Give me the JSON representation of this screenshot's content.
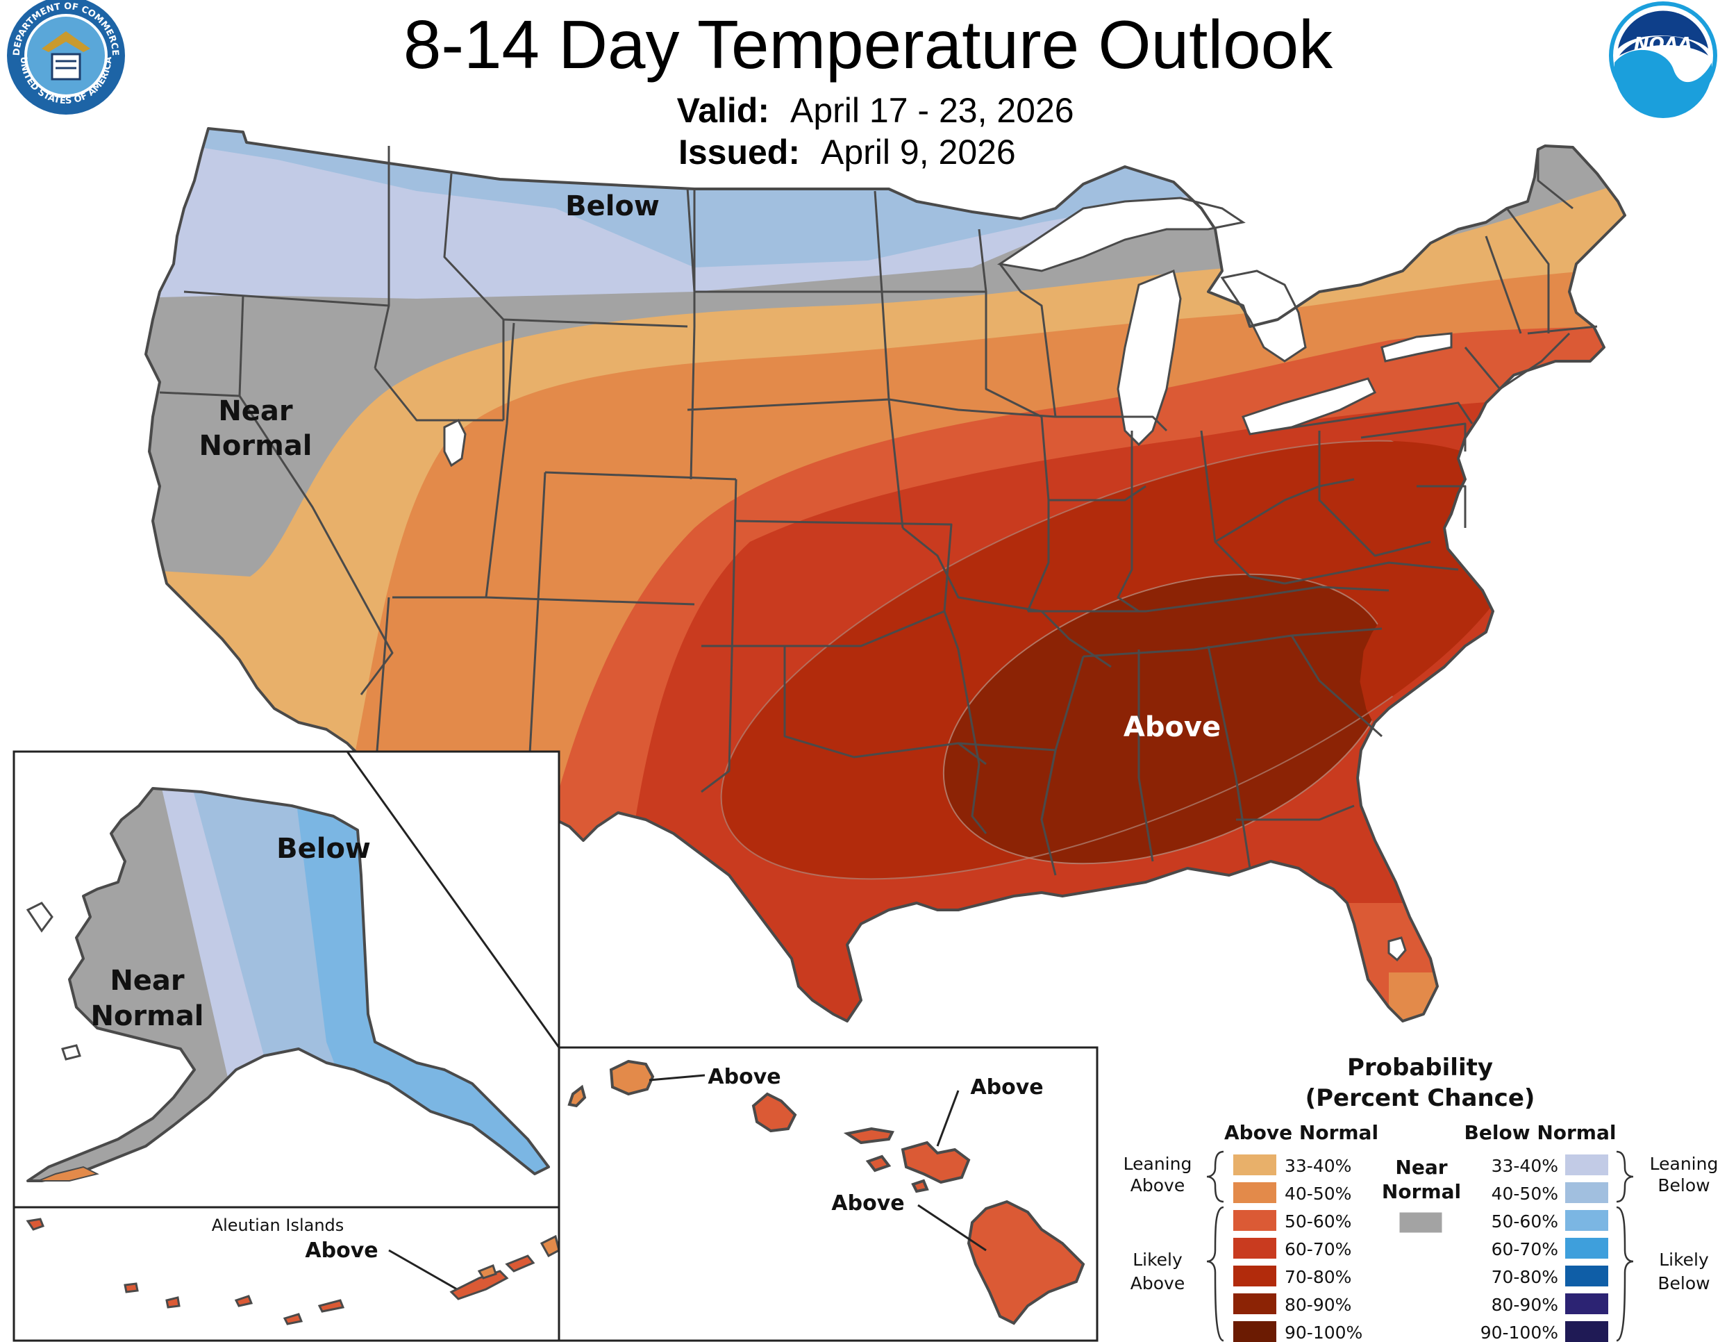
{
  "title": "8-14 Day Temperature Outlook",
  "valid": {
    "label": "Valid:",
    "value": "April 17 - 23, 2026"
  },
  "issued": {
    "label": "Issued:",
    "value": "April 9, 2026"
  },
  "logos": {
    "left_seal_text_top": "DEPARTMENT OF COMMERCE",
    "left_seal_text_bottom": "UNITED STATES OF AMERICA",
    "right_logo_text": "NOAA"
  },
  "conus_labels": {
    "below": "Below",
    "near_normal_1": "Near",
    "near_normal_2": "Normal",
    "above": "Above"
  },
  "alaska_labels": {
    "below": "Below",
    "near_normal_1": "Near",
    "near_normal_2": "Normal"
  },
  "aleutian": {
    "title": "Aleutian Islands",
    "above": "Above"
  },
  "hawaii_labels": {
    "kauai": "Above",
    "oahu_maui": "Above",
    "big_island": "Above"
  },
  "legend": {
    "title_1": "Probability",
    "title_2": "(Percent Chance)",
    "above_header": "Above Normal",
    "below_header": "Below Normal",
    "near_1": "Near",
    "near_2": "Normal",
    "leaning_above_1": "Leaning",
    "leaning_above_2": "Above",
    "likely_above_1": "Likely",
    "likely_above_2": "Above",
    "leaning_below_1": "Leaning",
    "leaning_below_2": "Below",
    "likely_below_1": "Likely",
    "likely_below_2": "Below",
    "above_rows": [
      {
        "range": "33-40%",
        "color": "#e8b06a"
      },
      {
        "range": "40-50%",
        "color": "#e38a4a"
      },
      {
        "range": "50-60%",
        "color": "#db5a35"
      },
      {
        "range": "60-70%",
        "color": "#c93b1f"
      },
      {
        "range": "70-80%",
        "color": "#b22b0c"
      },
      {
        "range": "80-90%",
        "color": "#8c2305"
      },
      {
        "range": "90-100%",
        "color": "#6b1b02"
      }
    ],
    "below_rows": [
      {
        "range": "33-40%",
        "color": "#c2cbe6"
      },
      {
        "range": "40-50%",
        "color": "#a1bfdf"
      },
      {
        "range": "50-60%",
        "color": "#7bb6e3"
      },
      {
        "range": "60-70%",
        "color": "#3e9fdc"
      },
      {
        "range": "70-80%",
        "color": "#0f5ea7"
      },
      {
        "range": "80-90%",
        "color": "#2c2373"
      },
      {
        "range": "90-100%",
        "color": "#1f1a55"
      }
    ],
    "near_color": "#a3a3a3"
  }
}
